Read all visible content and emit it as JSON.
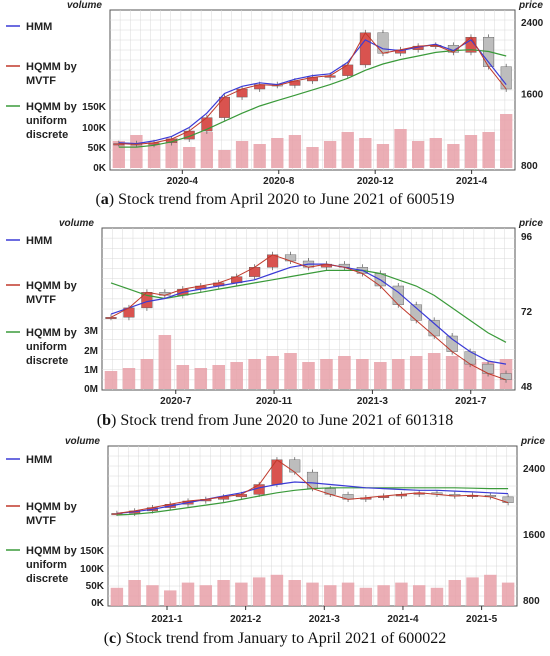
{
  "legend": {
    "hmm": "HMM",
    "mvtf": [
      "HQMM by",
      "MVTF"
    ],
    "uniform": [
      "HQMM by",
      "uniform",
      "discrete"
    ]
  },
  "colors": {
    "hmm": "#3b3bd6",
    "mvtf": "#c0392b",
    "uniform": "#3a9a3a",
    "candle_up": "#d9534f",
    "candle_down": "#bdbdbd",
    "volume": "#e8a0a8"
  },
  "chart_data": [
    {
      "type": "candlestick",
      "caption_label": "a",
      "caption_text": "Stock trend from April 2020 to June 2021 of 600519",
      "volume_title": "volume",
      "price_title": "price",
      "volume_ticks": [
        "150K",
        "100K",
        "50K",
        "0K"
      ],
      "price_ticks": [
        "2400",
        "1600",
        "800"
      ],
      "price_range": [
        800,
        2400
      ],
      "x_ticks": [
        "2020-4",
        "2020-8",
        "2020-12",
        "2021-4"
      ],
      "hmm": [
        1050,
        1040,
        1070,
        1120,
        1220,
        1380,
        1600,
        1680,
        1720,
        1700,
        1760,
        1800,
        1820,
        1950,
        2200,
        2100,
        2080,
        2120,
        2150,
        2080,
        2200,
        1950,
        1700
      ],
      "mvtf": [
        1040,
        1030,
        1050,
        1090,
        1180,
        1330,
        1560,
        1650,
        1700,
        1690,
        1740,
        1780,
        1800,
        1920,
        2280,
        2050,
        2090,
        2130,
        2140,
        2060,
        2230,
        1900,
        1650
      ],
      "uniform": [
        1000,
        1000,
        1020,
        1060,
        1120,
        1200,
        1290,
        1380,
        1460,
        1520,
        1580,
        1640,
        1700,
        1770,
        1860,
        1930,
        1980,
        2020,
        2060,
        2080,
        2090,
        2070,
        2020
      ],
      "volumes": [
        0.45,
        0.55,
        0.4,
        0.5,
        0.35,
        0.6,
        0.3,
        0.45,
        0.4,
        0.5,
        0.55,
        0.35,
        0.45,
        0.6,
        0.5,
        0.4,
        0.65,
        0.45,
        0.5,
        0.4,
        0.55,
        0.6,
        0.9
      ]
    },
    {
      "type": "candlestick",
      "caption_label": "b",
      "caption_text": "Stock trend from June 2020 to June 2021 of 601318",
      "volume_title": "volume",
      "price_title": "price",
      "volume_ticks": [
        "3M",
        "2M",
        "1M",
        "0M"
      ],
      "price_ticks": [
        "96",
        "72",
        "48"
      ],
      "price_range": [
        48,
        96
      ],
      "x_ticks": [
        "2020-7",
        "2020-11",
        "2021-3",
        "2021-7"
      ],
      "hmm": [
        71,
        73,
        75,
        76,
        78,
        79,
        80,
        81,
        82,
        84,
        86,
        87,
        87,
        86,
        85,
        82,
        78,
        73,
        68,
        63,
        59,
        56,
        55
      ],
      "mvtf": [
        70,
        73,
        78,
        77,
        79,
        80,
        81,
        83,
        86,
        90,
        88,
        86,
        87,
        86,
        84,
        80,
        74,
        69,
        64,
        59,
        55,
        52,
        50
      ],
      "uniform": [
        81,
        79,
        77,
        76,
        77,
        78,
        79,
        80,
        81,
        82,
        83,
        84,
        85,
        85,
        85,
        84,
        82,
        80,
        77,
        73,
        69,
        65,
        62
      ],
      "volumes": [
        0.3,
        0.35,
        0.5,
        0.9,
        0.4,
        0.35,
        0.4,
        0.45,
        0.5,
        0.55,
        0.6,
        0.45,
        0.5,
        0.55,
        0.5,
        0.45,
        0.5,
        0.55,
        0.6,
        0.55,
        0.5,
        0.45,
        0.5
      ]
    },
    {
      "type": "candlestick",
      "caption_label": "c",
      "caption_text": "Stock trend from January to April 2021 of 600022",
      "volume_title": "volume",
      "price_title": "price",
      "volume_ticks": [
        "150K",
        "100K",
        "50K",
        "0K"
      ],
      "price_ticks": [
        "2400",
        "1600",
        "800"
      ],
      "price_range": [
        800,
        2400
      ],
      "x_ticks": [
        "2021-1",
        "2021-2",
        "2021-3",
        "2021-4",
        "2021-5"
      ],
      "hmm": [
        1850,
        1870,
        1900,
        1940,
        1980,
        2020,
        2060,
        2100,
        2160,
        2200,
        2230,
        2220,
        2200,
        2180,
        2160,
        2150,
        2140,
        2130,
        2130,
        2120,
        2110,
        2100,
        2090
      ],
      "mvtf": [
        1850,
        1880,
        1920,
        1960,
        2000,
        2020,
        2050,
        2080,
        2200,
        2500,
        2350,
        2150,
        2080,
        2020,
        2040,
        2060,
        2080,
        2100,
        2080,
        2060,
        2070,
        2050,
        1980
      ],
      "uniform": [
        1830,
        1840,
        1860,
        1890,
        1920,
        1950,
        1980,
        2020,
        2060,
        2100,
        2130,
        2150,
        2160,
        2160,
        2160,
        2160,
        2160,
        2160,
        2160,
        2160,
        2155,
        2150,
        2150
      ],
      "volumes": [
        0.35,
        0.5,
        0.4,
        0.3,
        0.45,
        0.4,
        0.5,
        0.45,
        0.55,
        0.6,
        0.5,
        0.45,
        0.4,
        0.45,
        0.35,
        0.4,
        0.45,
        0.4,
        0.35,
        0.5,
        0.55,
        0.6,
        0.45
      ]
    }
  ]
}
